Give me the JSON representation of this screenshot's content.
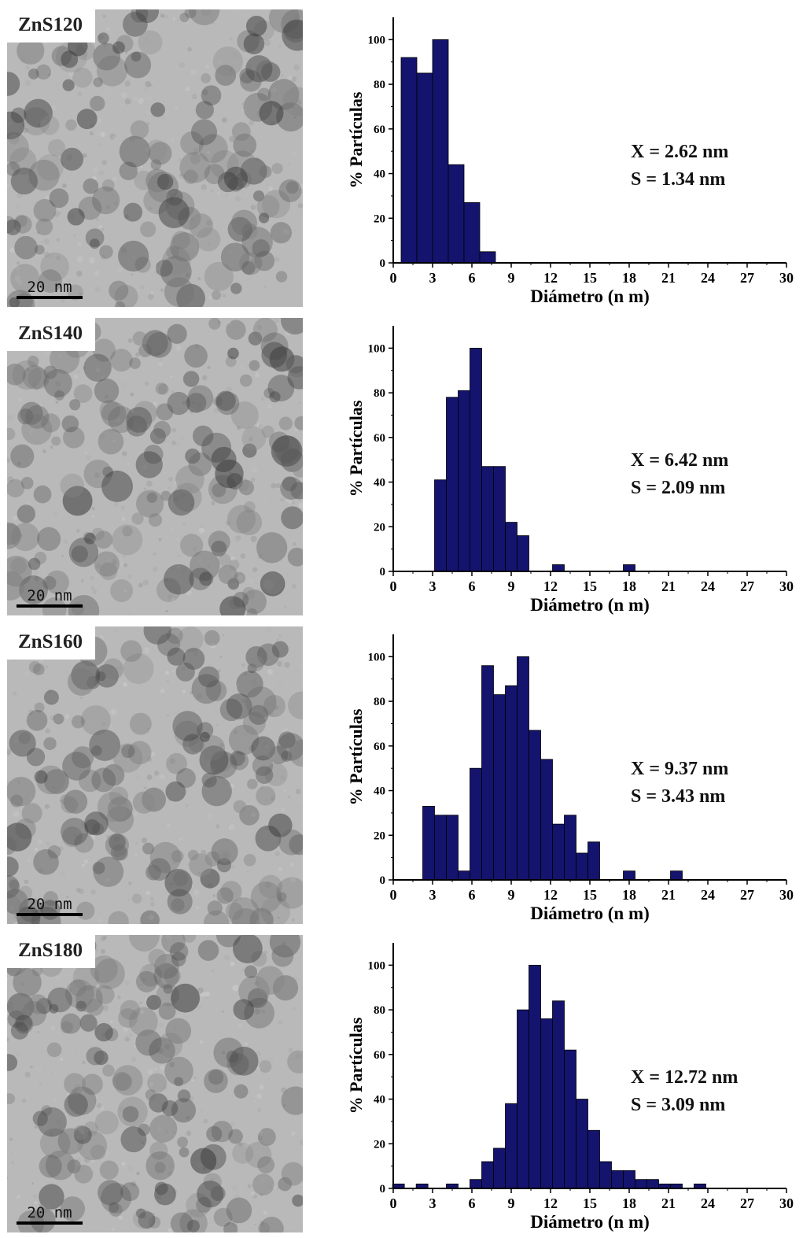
{
  "panels": [
    {
      "sample_label": "ZnS120",
      "scale_bar": "20 nm"
    },
    {
      "sample_label": "ZnS140",
      "scale_bar": "20 nm"
    },
    {
      "sample_label": "ZnS160",
      "scale_bar": "20 nm"
    },
    {
      "sample_label": "ZnS180",
      "scale_bar": "20 nm"
    }
  ],
  "colors": {
    "bar_fill": "#14146e",
    "axis": "#000000",
    "tem_background": "#b9b9b9"
  },
  "chart_data": [
    {
      "type": "bar",
      "xlabel": "Diámetro (n m)",
      "ylabel": "% Partículas",
      "xlim": [
        0,
        30
      ],
      "ylim": [
        0,
        100
      ],
      "xticks": [
        0,
        3,
        6,
        9,
        12,
        15,
        18,
        21,
        24,
        27,
        30
      ],
      "yticks": [
        0,
        20,
        40,
        60,
        80,
        100
      ],
      "bin_width": 1.2,
      "bars": [
        [
          1.2,
          92
        ],
        [
          2.4,
          85
        ],
        [
          3.6,
          100
        ],
        [
          4.8,
          44
        ],
        [
          6.0,
          27
        ],
        [
          7.2,
          5
        ]
      ],
      "annotations": [
        "X = 2.62 nm",
        "S = 1.34 nm"
      ]
    },
    {
      "type": "bar",
      "xlabel": "Diámetro (n m)",
      "ylabel": "% Partículas",
      "xlim": [
        0,
        30
      ],
      "ylim": [
        0,
        100
      ],
      "xticks": [
        0,
        3,
        6,
        9,
        12,
        15,
        18,
        21,
        24,
        27,
        30
      ],
      "yticks": [
        0,
        20,
        40,
        60,
        80,
        100
      ],
      "bin_width": 0.9,
      "bars": [
        [
          3.6,
          41
        ],
        [
          4.5,
          78
        ],
        [
          5.4,
          81
        ],
        [
          6.3,
          100
        ],
        [
          7.2,
          47
        ],
        [
          8.1,
          47
        ],
        [
          9.0,
          22
        ],
        [
          9.9,
          16
        ],
        [
          12.6,
          3
        ],
        [
          18.0,
          3
        ]
      ],
      "annotations": [
        "X = 6.42 nm",
        "S = 2.09 nm"
      ]
    },
    {
      "type": "bar",
      "xlabel": "Diámetro (n m)",
      "ylabel": "% Partículas",
      "xlim": [
        0,
        30
      ],
      "ylim": [
        0,
        100
      ],
      "xticks": [
        0,
        3,
        6,
        9,
        12,
        15,
        18,
        21,
        24,
        27,
        30
      ],
      "yticks": [
        0,
        20,
        40,
        60,
        80,
        100
      ],
      "bin_width": 0.9,
      "bars": [
        [
          2.7,
          33
        ],
        [
          3.6,
          29
        ],
        [
          4.5,
          29
        ],
        [
          5.4,
          4
        ],
        [
          6.3,
          50
        ],
        [
          7.2,
          96
        ],
        [
          8.1,
          83
        ],
        [
          9.0,
          87
        ],
        [
          9.9,
          100
        ],
        [
          10.8,
          67
        ],
        [
          11.7,
          54
        ],
        [
          12.6,
          25
        ],
        [
          13.5,
          29
        ],
        [
          14.4,
          12
        ],
        [
          15.3,
          17
        ],
        [
          18.0,
          4
        ],
        [
          21.6,
          4
        ]
      ],
      "annotations": [
        "X = 9.37 nm",
        "S = 3.43 nm"
      ]
    },
    {
      "type": "bar",
      "xlabel": "Diámetro (n m)",
      "ylabel": "% Partículas",
      "xlim": [
        0,
        30
      ],
      "ylim": [
        0,
        100
      ],
      "xticks": [
        0,
        3,
        6,
        9,
        12,
        15,
        18,
        21,
        24,
        27,
        30
      ],
      "yticks": [
        0,
        20,
        40,
        60,
        80,
        100
      ],
      "bin_width": 0.9,
      "bars": [
        [
          0.4,
          2
        ],
        [
          2.2,
          2
        ],
        [
          4.5,
          2
        ],
        [
          6.3,
          4
        ],
        [
          7.2,
          12
        ],
        [
          8.1,
          18
        ],
        [
          9.0,
          38
        ],
        [
          9.9,
          80
        ],
        [
          10.8,
          100
        ],
        [
          11.7,
          76
        ],
        [
          12.6,
          84
        ],
        [
          13.5,
          62
        ],
        [
          14.4,
          40
        ],
        [
          15.3,
          26
        ],
        [
          16.2,
          12
        ],
        [
          17.1,
          8
        ],
        [
          18.0,
          8
        ],
        [
          18.9,
          4
        ],
        [
          19.8,
          4
        ],
        [
          20.7,
          2
        ],
        [
          21.6,
          2
        ],
        [
          23.4,
          2
        ]
      ],
      "annotations": [
        "X = 12.72 nm",
        "S = 3.09 nm"
      ]
    }
  ]
}
